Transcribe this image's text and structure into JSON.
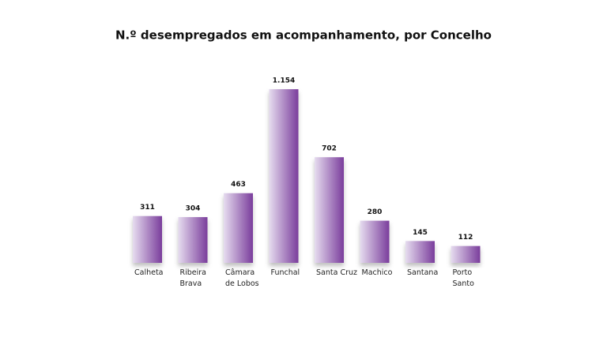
{
  "chart_data": {
    "type": "bar",
    "title": "N.º desempregados em acompanhamento, por Concelho",
    "categories": [
      "Calheta",
      "Ribeira Brava",
      "Câmara de Lobos",
      "Funchal",
      "Santa Cruz",
      "Machico",
      "Santana",
      "Porto Santo"
    ],
    "values": [
      311,
      304,
      463,
      1154,
      702,
      280,
      145,
      112
    ],
    "value_labels": [
      "311",
      "304",
      "463",
      "1.154",
      "702",
      "280",
      "145",
      "112"
    ],
    "color": "#7a3d9c"
  }
}
